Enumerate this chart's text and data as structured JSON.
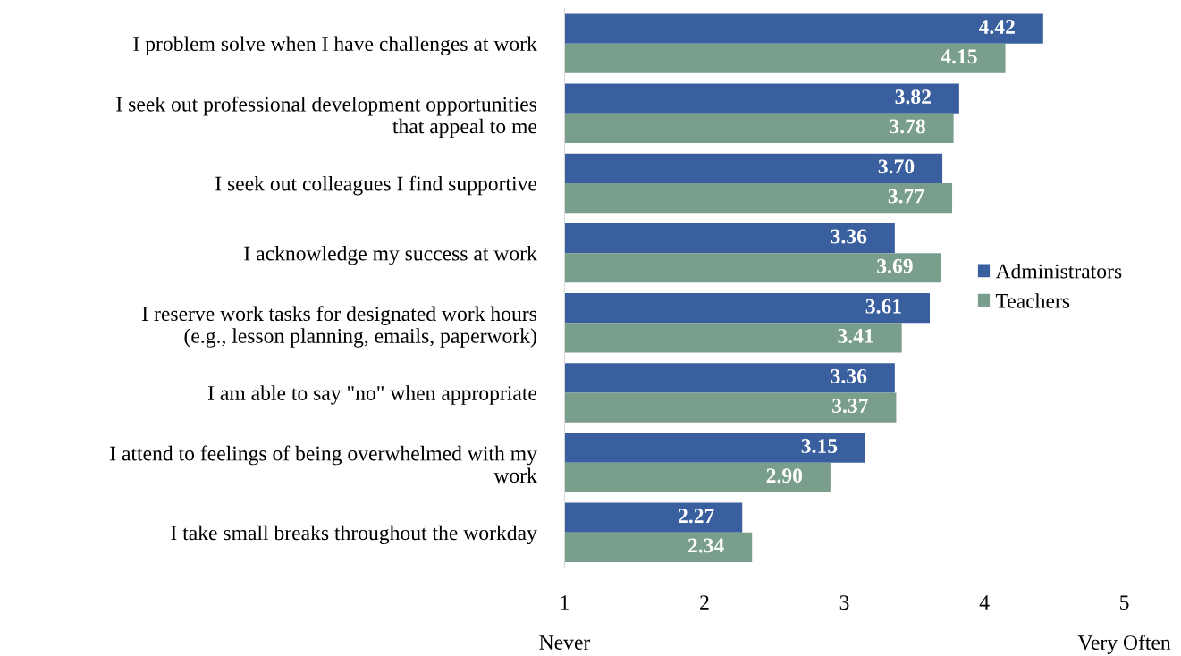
{
  "chart_data": {
    "type": "bar",
    "orientation": "horizontal",
    "categories": [
      "I problem solve when I have challenges at work",
      "I seek out professional development opportunities\nthat appeal to me",
      "I seek out colleagues I find supportive",
      "I acknowledge my success at work",
      "I reserve work tasks for designated work hours\n(e.g., lesson planning, emails, paperwork)",
      "I am able to say \"no\" when appropriate",
      "I attend to feelings of being overwhelmed with my\nwork",
      "I take small breaks throughout the workday"
    ],
    "series": [
      {
        "name": "Administrators",
        "color": "#3a5f9e",
        "values": [
          4.42,
          3.82,
          3.7,
          3.36,
          3.61,
          3.36,
          3.15,
          2.27
        ],
        "value_labels": [
          "4.42",
          "3.82",
          "3.70",
          "3.36",
          "3.61",
          "3.36",
          "3.15",
          "2.27"
        ]
      },
      {
        "name": "Teachers",
        "color": "#7a9e8c",
        "values": [
          4.15,
          3.78,
          3.77,
          3.69,
          3.41,
          3.37,
          2.9,
          2.34
        ],
        "value_labels": [
          "4.15",
          "3.78",
          "3.77",
          "3.69",
          "3.41",
          "3.37",
          "2.90",
          "2.34"
        ]
      }
    ],
    "xlim": [
      1,
      5
    ],
    "xticks": [
      1,
      2,
      3,
      4,
      5
    ],
    "grid": false,
    "legend": "right",
    "annotations": [
      "Never",
      "Very Often"
    ]
  }
}
